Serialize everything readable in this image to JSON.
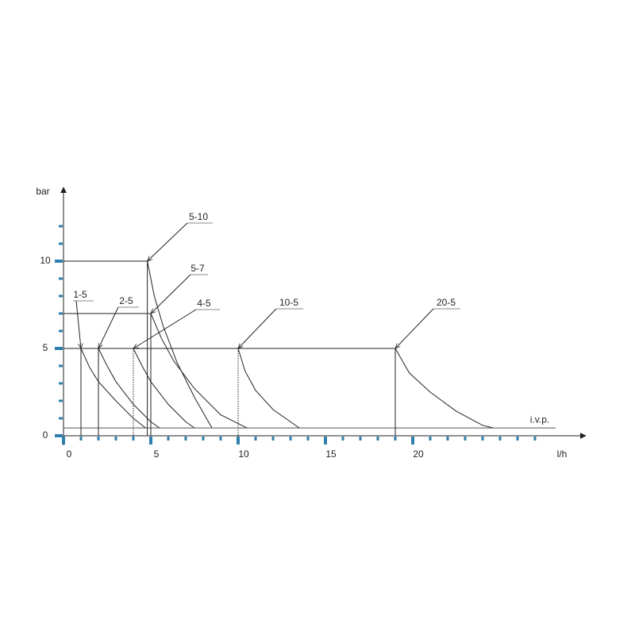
{
  "chart_data": {
    "type": "line",
    "y_label": "bar",
    "x_label": "l/h",
    "xlim": [
      0,
      29
    ],
    "ylim": [
      0,
      14
    ],
    "xticks": [
      0,
      5,
      10,
      15,
      20
    ],
    "yticks": [
      0,
      5,
      10
    ],
    "minor_xticks": [
      1,
      2,
      3,
      4,
      6,
      7,
      8,
      9,
      11,
      12,
      13,
      14,
      16,
      17,
      18,
      19,
      21,
      22,
      23,
      24,
      25,
      26,
      27
    ],
    "minor_yticks": [
      1,
      2,
      3,
      4,
      6,
      7,
      8,
      9,
      11,
      12
    ],
    "tick_color": "#2f7fae",
    "reference": {
      "name": "i.v.p.",
      "value": 0.45
    },
    "series": [
      {
        "name": "1-5",
        "color": "#222222",
        "x": [
          1,
          1.5,
          2,
          3,
          4,
          4.7
        ],
        "values": [
          5,
          3.9,
          3.1,
          2,
          1,
          0.45
        ]
      },
      {
        "name": "2-5",
        "color": "#222222",
        "x": [
          2,
          2.5,
          3,
          4,
          5,
          5.5
        ],
        "values": [
          5,
          4,
          3.1,
          1.8,
          0.8,
          0.45
        ]
      },
      {
        "name": "4-5",
        "color": "#222222",
        "style": "dotted",
        "x": [
          4,
          4.5,
          5,
          6,
          7,
          7.5
        ],
        "values": [
          5,
          4,
          3.1,
          1.8,
          0.8,
          0.45
        ]
      },
      {
        "name": "5-10",
        "color": "#222222",
        "x": [
          4.8,
          5.2,
          5.7,
          6.5,
          7.5,
          8.5
        ],
        "values": [
          10,
          8,
          6.3,
          4.2,
          2.2,
          0.45
        ]
      },
      {
        "name": "5-7",
        "color": "#222222",
        "x": [
          5,
          5.6,
          6.3,
          7.5,
          9,
          10.5
        ],
        "values": [
          7,
          5.6,
          4.3,
          2.7,
          1.2,
          0.45
        ]
      },
      {
        "name": "10-5",
        "color": "#222222",
        "style": "dotted",
        "x": [
          10,
          10.4,
          11,
          12,
          13,
          13.5
        ],
        "values": [
          5,
          3.7,
          2.6,
          1.5,
          0.8,
          0.45
        ]
      },
      {
        "name": "20-5",
        "color": "#222222",
        "x": [
          19,
          19.8,
          21,
          22.5,
          24,
          24.6
        ],
        "values": [
          5,
          3.6,
          2.5,
          1.4,
          0.6,
          0.45
        ]
      }
    ]
  }
}
